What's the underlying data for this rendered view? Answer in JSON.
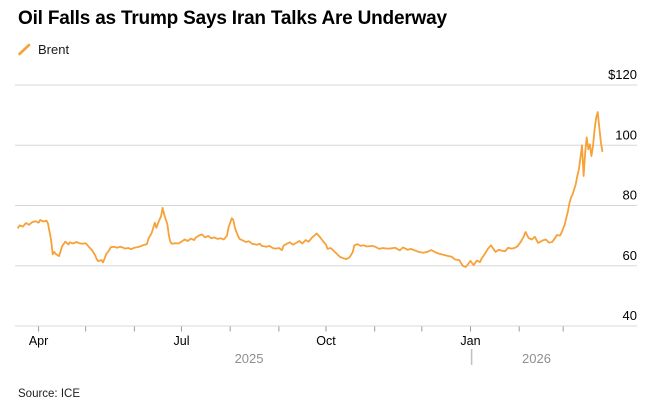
{
  "header": {
    "title": "Oil Falls as Trump Says Iran Talks Are Underway"
  },
  "legend": {
    "series_label": "Brent",
    "marker_color": "#F7A139"
  },
  "footer": {
    "source": "Source: ICE"
  },
  "chart_data": {
    "type": "line",
    "title": "Oil Falls as Trump Says Iran Talks Are Underway",
    "series_name": "Brent",
    "source": "Source: ICE",
    "line_color": "#F7A139",
    "gridline_color": "#d8d8d8",
    "tick_color": "#9b9b9b",
    "axis_label_color": "#000000",
    "year_label_color": "#8f8f8f",
    "grid": "horizontal-only",
    "y_unit": "USD per barrel",
    "y_domain": [
      40,
      120
    ],
    "y_ticks": [
      {
        "value": 120,
        "label": "$120"
      },
      {
        "value": 100,
        "label": "100"
      },
      {
        "value": 80,
        "label": "80"
      },
      {
        "value": 60,
        "label": "60"
      },
      {
        "value": 40,
        "label": "40"
      }
    ],
    "x_unit": "days since 2025-04-01",
    "x_domain": [
      -15,
      381
    ],
    "x_ticks_minor_days": [
      0,
      30,
      61,
      91,
      122,
      153,
      183,
      214,
      244,
      275,
      306,
      334
    ],
    "x_ticks_major": [
      {
        "day": 0,
        "label": "Apr"
      },
      {
        "day": 91,
        "label": "Jul"
      },
      {
        "day": 183,
        "label": "Oct"
      },
      {
        "day": 275,
        "label": "Jan"
      }
    ],
    "year_labels": [
      {
        "day": 134,
        "label": "2025"
      },
      {
        "day": 317,
        "label": "2026"
      }
    ],
    "year_divider_day": 275.7,
    "points": [
      [
        -13,
        72.6
      ],
      [
        -12,
        73.4
      ],
      [
        -10,
        73.0
      ],
      [
        -8,
        74.2
      ],
      [
        -6,
        73.6
      ],
      [
        -4,
        74.5
      ],
      [
        -2,
        74.8
      ],
      [
        0,
        74.3
      ],
      [
        1,
        75.2
      ],
      [
        3,
        74.7
      ],
      [
        5,
        75.0
      ],
      [
        6,
        74.0
      ],
      [
        8,
        68.5
      ],
      [
        9,
        63.8
      ],
      [
        10,
        64.6
      ],
      [
        11,
        63.9
      ],
      [
        13,
        63.2
      ],
      [
        14,
        64.8
      ],
      [
        15,
        66.5
      ],
      [
        17,
        68.0
      ],
      [
        19,
        67.1
      ],
      [
        20,
        67.8
      ],
      [
        22,
        67.4
      ],
      [
        24,
        67.9
      ],
      [
        26,
        67.5
      ],
      [
        28,
        67.3
      ],
      [
        30,
        67.5
      ],
      [
        32,
        66.3
      ],
      [
        34,
        65.2
      ],
      [
        36,
        63.5
      ],
      [
        37,
        62.2
      ],
      [
        38,
        61.5
      ],
      [
        40,
        61.9
      ],
      [
        41,
        61.1
      ],
      [
        42,
        62.3
      ],
      [
        43,
        63.8
      ],
      [
        45,
        65.2
      ],
      [
        46,
        66.2
      ],
      [
        48,
        66.3
      ],
      [
        50,
        66.0
      ],
      [
        52,
        66.3
      ],
      [
        54,
        66.0
      ],
      [
        55,
        65.7
      ],
      [
        57,
        65.9
      ],
      [
        59,
        65.5
      ],
      [
        61,
        66.0
      ],
      [
        63,
        66.2
      ],
      [
        65,
        66.5
      ],
      [
        67,
        66.9
      ],
      [
        69,
        67.2
      ],
      [
        70,
        69.0
      ],
      [
        72,
        70.9
      ],
      [
        74,
        74.3
      ],
      [
        75,
        72.6
      ],
      [
        76,
        74.0
      ],
      [
        78,
        76.5
      ],
      [
        79,
        79.2
      ],
      [
        80,
        77.0
      ],
      [
        82,
        73.7
      ],
      [
        83,
        70.0
      ],
      [
        84,
        67.8
      ],
      [
        85,
        67.3
      ],
      [
        87,
        67.5
      ],
      [
        89,
        67.4
      ],
      [
        91,
        68.0
      ],
      [
        93,
        68.7
      ],
      [
        95,
        68.2
      ],
      [
        97,
        69.0
      ],
      [
        99,
        68.5
      ],
      [
        100,
        69.3
      ],
      [
        102,
        70.0
      ],
      [
        104,
        70.4
      ],
      [
        106,
        69.4
      ],
      [
        108,
        69.9
      ],
      [
        110,
        69.1
      ],
      [
        112,
        69.4
      ],
      [
        114,
        68.9
      ],
      [
        116,
        69.1
      ],
      [
        118,
        68.7
      ],
      [
        120,
        70.0
      ],
      [
        121,
        72.8
      ],
      [
        123,
        75.8
      ],
      [
        124,
        75.2
      ],
      [
        125,
        72.6
      ],
      [
        127,
        69.9
      ],
      [
        128,
        68.9
      ],
      [
        130,
        68.4
      ],
      [
        132,
        67.9
      ],
      [
        134,
        68.1
      ],
      [
        136,
        67.3
      ],
      [
        139,
        67.0
      ],
      [
        141,
        67.3
      ],
      [
        142,
        66.6
      ],
      [
        145,
        66.3
      ],
      [
        147,
        66.6
      ],
      [
        149,
        65.9
      ],
      [
        151,
        65.7
      ],
      [
        153,
        65.9
      ],
      [
        155,
        65.2
      ],
      [
        156,
        66.7
      ],
      [
        158,
        67.3
      ],
      [
        160,
        67.8
      ],
      [
        162,
        67.0
      ],
      [
        164,
        67.6
      ],
      [
        166,
        68.2
      ],
      [
        168,
        67.4
      ],
      [
        170,
        68.5
      ],
      [
        172,
        68.0
      ],
      [
        174,
        69.3
      ],
      [
        176,
        70.2
      ],
      [
        177,
        70.7
      ],
      [
        179,
        69.6
      ],
      [
        181,
        68.2
      ],
      [
        183,
        67.0
      ],
      [
        184,
        65.6
      ],
      [
        186,
        65.9
      ],
      [
        188,
        64.9
      ],
      [
        190,
        63.9
      ],
      [
        192,
        62.9
      ],
      [
        194,
        62.5
      ],
      [
        196,
        62.2
      ],
      [
        198,
        62.8
      ],
      [
        200,
        64.5
      ],
      [
        201,
        66.8
      ],
      [
        203,
        67.2
      ],
      [
        205,
        66.6
      ],
      [
        207,
        66.8
      ],
      [
        209,
        66.4
      ],
      [
        212,
        66.6
      ],
      [
        214,
        66.4
      ],
      [
        217,
        65.6
      ],
      [
        219,
        65.9
      ],
      [
        222,
        65.7
      ],
      [
        225,
        65.8
      ],
      [
        227,
        66.0
      ],
      [
        230,
        65.1
      ],
      [
        232,
        66.1
      ],
      [
        235,
        65.3
      ],
      [
        237,
        65.6
      ],
      [
        240,
        65.0
      ],
      [
        242,
        64.6
      ],
      [
        245,
        64.3
      ],
      [
        248,
        64.7
      ],
      [
        250,
        65.2
      ],
      [
        253,
        64.4
      ],
      [
        255,
        64.0
      ],
      [
        258,
        63.6
      ],
      [
        260,
        63.3
      ],
      [
        263,
        63.0
      ],
      [
        265,
        62.1
      ],
      [
        268,
        61.8
      ],
      [
        270,
        60.0
      ],
      [
        272,
        59.6
      ],
      [
        274,
        60.9
      ],
      [
        275,
        61.6
      ],
      [
        277,
        60.2
      ],
      [
        279,
        61.7
      ],
      [
        281,
        61.2
      ],
      [
        282,
        62.3
      ],
      [
        284,
        63.8
      ],
      [
        286,
        65.6
      ],
      [
        288,
        66.8
      ],
      [
        290,
        65.3
      ],
      [
        291,
        64.6
      ],
      [
        293,
        65.3
      ],
      [
        295,
        65.0
      ],
      [
        297,
        64.8
      ],
      [
        299,
        66.0
      ],
      [
        301,
        65.7
      ],
      [
        303,
        65.9
      ],
      [
        305,
        66.5
      ],
      [
        307,
        68.0
      ],
      [
        309,
        69.8
      ],
      [
        310,
        71.2
      ],
      [
        312,
        69.2
      ],
      [
        314,
        68.7
      ],
      [
        316,
        69.6
      ],
      [
        318,
        67.6
      ],
      [
        320,
        68.1
      ],
      [
        321,
        68.4
      ],
      [
        323,
        68.7
      ],
      [
        325,
        67.7
      ],
      [
        327,
        67.9
      ],
      [
        329,
        69.3
      ],
      [
        330,
        70.2
      ],
      [
        332,
        70.0
      ],
      [
        333,
        71.0
      ],
      [
        335,
        73.7
      ],
      [
        336,
        75.9
      ],
      [
        337,
        78.0
      ],
      [
        338,
        80.9
      ],
      [
        339,
        82.6
      ],
      [
        340,
        83.7
      ],
      [
        341,
        85.4
      ],
      [
        342,
        87.0
      ],
      [
        343,
        89.8
      ],
      [
        344,
        92.0
      ],
      [
        345,
        96.0
      ],
      [
        346,
        100.0
      ],
      [
        347,
        89.8
      ],
      [
        348,
        97.6
      ],
      [
        349,
        102.6
      ],
      [
        350,
        98.7
      ],
      [
        351,
        100.3
      ],
      [
        352,
        96.4
      ],
      [
        353,
        99.8
      ],
      [
        354,
        105.3
      ],
      [
        355,
        109.2
      ],
      [
        356,
        111.0
      ],
      [
        357,
        105.9
      ],
      [
        358,
        100.9
      ],
      [
        359,
        98.0
      ]
    ]
  }
}
